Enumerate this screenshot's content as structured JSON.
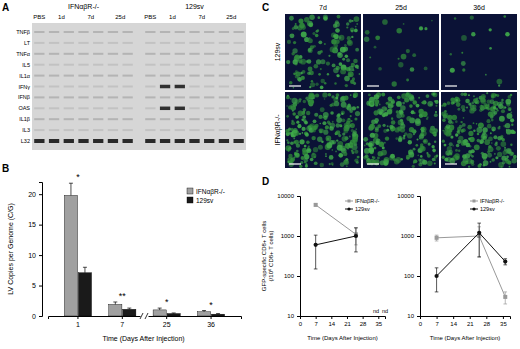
{
  "panel_labels": [
    "A",
    "B",
    "C",
    "D"
  ],
  "gel": {
    "groups": [
      {
        "label": "IFNαβR-/-",
        "lanes": [
          "PBS",
          "1d",
          "7d",
          "25d"
        ]
      },
      {
        "label": "129sv",
        "lanes": [
          "PBS",
          "1d",
          "7d",
          "25d"
        ]
      }
    ],
    "bands": [
      "TNFβ",
      "LT",
      "TNFα",
      "IL5",
      "IL1α",
      "IFNγ",
      "IFNβ",
      "OAS",
      "IL1β",
      "IL3",
      "L32"
    ]
  },
  "micrographs": {
    "columns": [
      "7d",
      "25d",
      "36d"
    ],
    "rows": [
      "129sv",
      "IFNαβR-/-"
    ]
  },
  "chart_data": [
    {
      "type": "bar",
      "x_label": "Time (Days After Injection)",
      "y_label": "LV Copies per Genome (C/G)",
      "categories": [
        "1",
        "7",
        "25",
        "36"
      ],
      "series": [
        {
          "name": "IFNαβR-/-",
          "color": "#a0a0a0",
          "values": [
            19.8,
            1.9,
            1.0,
            0.7
          ],
          "errors": [
            2.0,
            0.4,
            0.3,
            0.2
          ]
        },
        {
          "name": "129sv",
          "color": "#1a1a1a",
          "values": [
            7.1,
            1.1,
            0.4,
            0.3
          ],
          "errors": [
            0.9,
            0.2,
            0.1,
            0.1
          ]
        }
      ],
      "annotations": [
        "*",
        "**",
        "*",
        "*"
      ],
      "ylim": [
        0,
        22
      ],
      "yticks": [
        0,
        5,
        10,
        15,
        20
      ],
      "legend": "top-right"
    },
    {
      "type": "line",
      "log": "y",
      "x_label": "Time (Days After Injection)",
      "y_label": "GFP-specific CD8+ T cells\n(/10⁶ CD8+ T cells)",
      "x": [
        7,
        25,
        36
      ],
      "series": [
        {
          "name": "IFNαβR-/-",
          "color": "#999999",
          "marker": "square",
          "values": [
            6000,
            1100,
            null
          ],
          "errors": [
            400,
            500,
            null
          ]
        },
        {
          "name": "129sv",
          "color": "#111111",
          "marker": "circle",
          "values": [
            600,
            1000,
            null
          ],
          "errors": [
            450,
            600,
            null
          ]
        }
      ],
      "annotations": [
        "nd",
        "nd"
      ],
      "xlim": [
        0,
        38
      ],
      "ylim": [
        10,
        10000
      ],
      "xticks": [
        0,
        7,
        14,
        21,
        28,
        35
      ],
      "yticks": [
        10,
        100,
        1000,
        10000
      ],
      "legend": "top-right"
    },
    {
      "type": "line",
      "log": "y",
      "x_label": "Time (Days After Injection)",
      "x": [
        7,
        25,
        36
      ],
      "series": [
        {
          "name": "IFNαβR-/-",
          "color": "#999999",
          "marker": "square",
          "values": [
            900,
            1000,
            30
          ],
          "errors": [
            150,
            700,
            10
          ]
        },
        {
          "name": "129sv",
          "color": "#111111",
          "marker": "circle",
          "values": [
            100,
            1200,
            230
          ],
          "errors": [
            60,
            900,
            40
          ]
        }
      ],
      "xlim": [
        0,
        38
      ],
      "ylim": [
        10,
        10000
      ],
      "xticks": [
        0,
        7,
        14,
        21,
        28,
        35
      ],
      "yticks": [
        10,
        100,
        1000,
        10000
      ],
      "legend": "top-right"
    }
  ]
}
